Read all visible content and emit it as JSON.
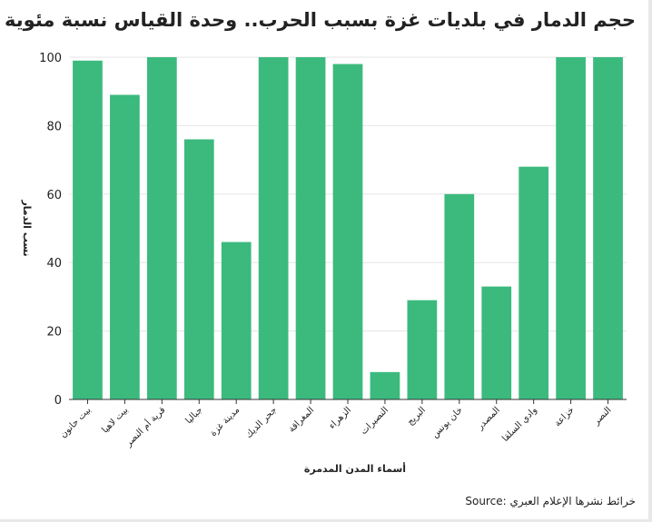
{
  "title": "حجم الدمار في بلديات غزة بسبب الحرب.. وحدة القياس نسبة مئوية",
  "source": {
    "label": "Source:",
    "text": "خرائط نشرها الإعلام العبري"
  },
  "colors": {
    "bar": "#3cba7e",
    "grid": "#e6e6e6",
    "axis": "#333333",
    "text": "#222222"
  },
  "chart_data": {
    "type": "bar",
    "title": "حجم الدمار في بلديات غزة بسبب الحرب.. وحدة القياس نسبة مئوية",
    "xlabel": "أسماء المدن المدمرة",
    "ylabel": "نسب الدمار",
    "ylim": [
      0,
      100
    ],
    "yticks": [
      0,
      20,
      40,
      60,
      80,
      100
    ],
    "grid": true,
    "categories": [
      "بيت حانون",
      "بيت لاهيا",
      "قرية أم النصر",
      "جباليا",
      "مدينة غزة",
      "جحر الديك",
      "المغراقة",
      "الزهراء",
      "النصيرات",
      "البريج",
      "خان يونس",
      "المصدر",
      "وادي السلقا",
      "خزاعة",
      "النصر"
    ],
    "values": [
      99,
      89,
      100,
      76,
      46,
      100,
      100,
      98,
      8,
      29,
      60,
      33,
      68,
      100,
      100
    ]
  }
}
